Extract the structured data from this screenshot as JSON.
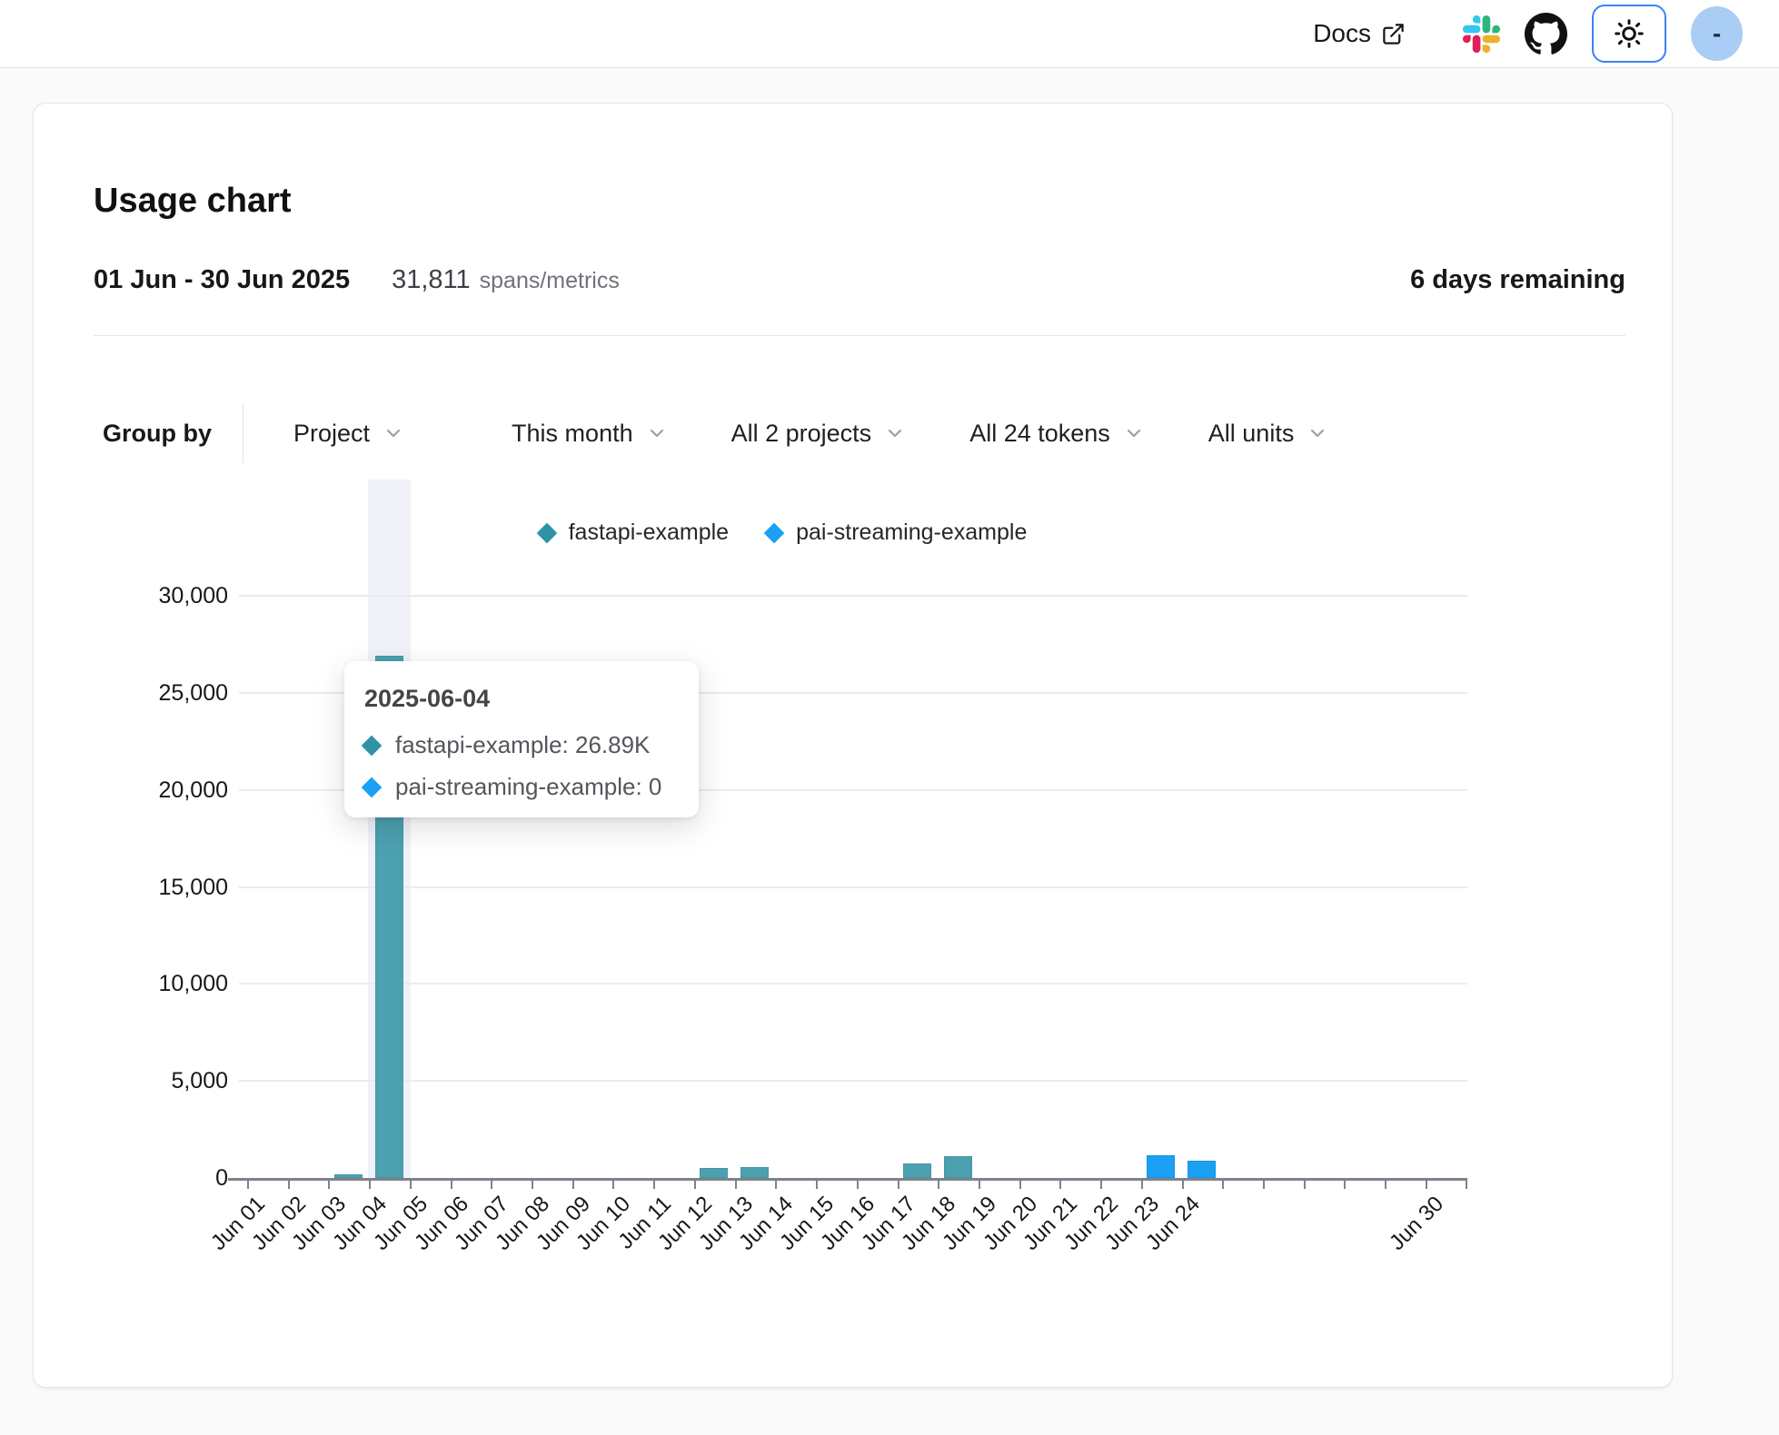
{
  "topbar": {
    "docs_label": "Docs",
    "avatar_text": "-",
    "icons": {
      "external_link": "external-link-icon",
      "slack": "slack-icon",
      "github": "github-icon",
      "theme": "sun-icon",
      "dropdown": "chevron-down-icon",
      "series_marker": "diamond-icon"
    },
    "theme_button_border": "#3b82f6",
    "avatar_bg": "#a9cdf4"
  },
  "usage_card": {
    "title": "Usage chart",
    "period": "01 Jun - 30 Jun 2025",
    "total_count": "31,811",
    "total_unit": "spans/metrics",
    "remaining": "6 days remaining",
    "filters": {
      "group_by_label": "Group by",
      "dropdowns": [
        {
          "label": "Project"
        },
        {
          "label": "This month"
        },
        {
          "label": "All 2 projects"
        },
        {
          "label": "All 24 tokens"
        },
        {
          "label": "All units"
        }
      ]
    }
  },
  "tooltip": {
    "title": "2025-06-04",
    "rows": [
      {
        "label": "fastapi-example",
        "value": "26.89K",
        "color": "#2E93A6"
      },
      {
        "label": "pai-streaming-example",
        "value": "0",
        "color": "#1AA0F4"
      }
    ]
  },
  "chart_data": {
    "type": "bar",
    "title": "Usage chart",
    "xlabel": "",
    "ylabel": "",
    "ylim": [
      0,
      30000
    ],
    "yticks": [
      0,
      5000,
      10000,
      15000,
      20000,
      25000,
      30000
    ],
    "ytick_labels": [
      "0",
      "5,000",
      "10,000",
      "15,000",
      "20,000",
      "25,000",
      "30,000"
    ],
    "grid": "horizontal",
    "legend_position": "top",
    "highlighted_x": "Jun 04",
    "x": [
      "Jun 01",
      "Jun 02",
      "Jun 03",
      "Jun 04",
      "Jun 05",
      "Jun 06",
      "Jun 07",
      "Jun 08",
      "Jun 09",
      "Jun 10",
      "Jun 11",
      "Jun 12",
      "Jun 13",
      "Jun 14",
      "Jun 15",
      "Jun 16",
      "Jun 17",
      "Jun 18",
      "Jun 19",
      "Jun 20",
      "Jun 21",
      "Jun 22",
      "Jun 23",
      "Jun 24",
      "Jun 25",
      "Jun 26",
      "Jun 27",
      "Jun 28",
      "Jun 29",
      "Jun 30"
    ],
    "x_labels_shown": [
      "Jun 01",
      "Jun 02",
      "Jun 03",
      "Jun 04",
      "Jun 05",
      "Jun 06",
      "Jun 07",
      "Jun 08",
      "Jun 09",
      "Jun 10",
      "Jun 11",
      "Jun 12",
      "Jun 13",
      "Jun 14",
      "Jun 15",
      "Jun 16",
      "Jun 17",
      "Jun 18",
      "Jun 19",
      "Jun 20",
      "Jun 21",
      "Jun 22",
      "Jun 23",
      "Jun 24",
      "Jun 30"
    ],
    "series": [
      {
        "name": "fastapi-example",
        "color": "#4CA1B1",
        "legend_color": "#2E93A6",
        "values": [
          0,
          0,
          150,
          26890,
          0,
          0,
          0,
          0,
          0,
          0,
          0,
          500,
          550,
          0,
          0,
          0,
          750,
          1100,
          0,
          0,
          0,
          0,
          0,
          0,
          0,
          0,
          0,
          0,
          0,
          0
        ]
      },
      {
        "name": "pai-streaming-example",
        "color": "#1AA0F4",
        "legend_color": "#1AA0F4",
        "values": [
          0,
          0,
          0,
          0,
          0,
          0,
          0,
          0,
          0,
          0,
          0,
          0,
          0,
          0,
          0,
          0,
          0,
          0,
          0,
          0,
          0,
          0,
          1150,
          900,
          0,
          0,
          0,
          0,
          0,
          0
        ]
      }
    ]
  }
}
